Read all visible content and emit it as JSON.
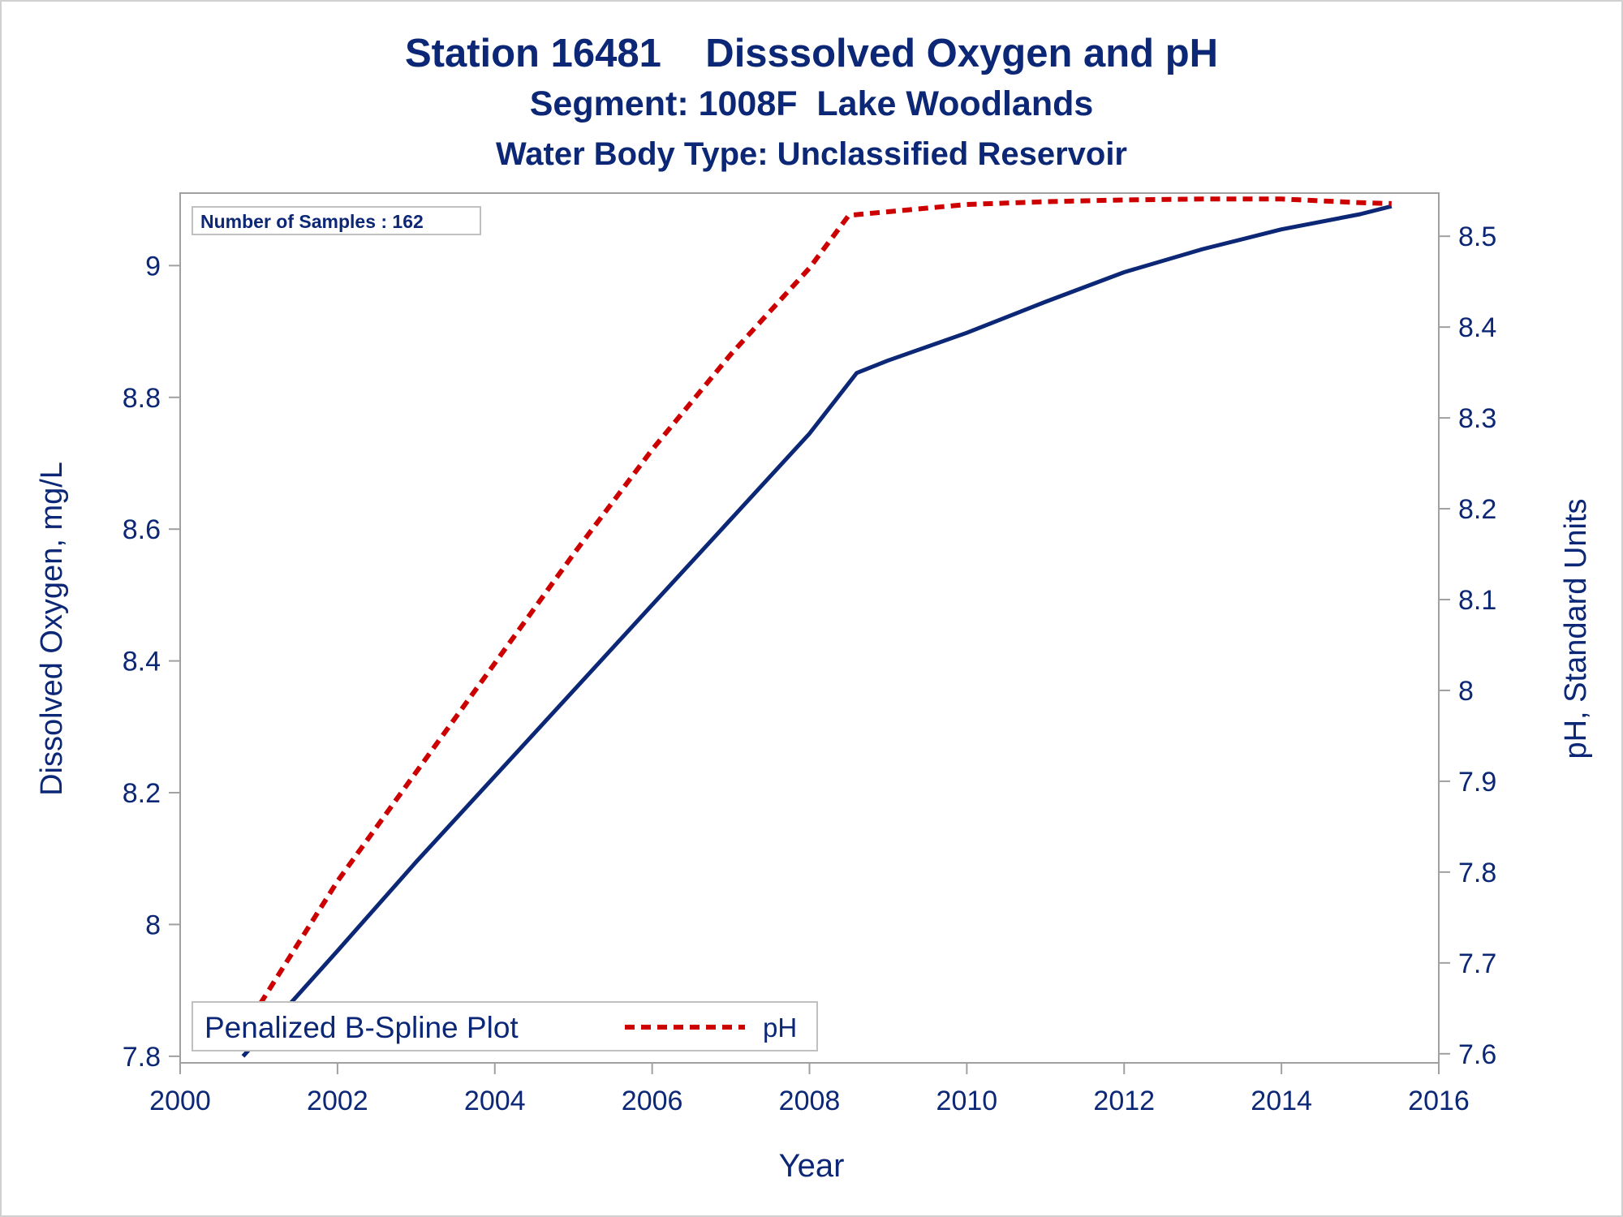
{
  "titles": {
    "line1": "Station 16481    Disssolved Oxygen and pH",
    "line2": "Segment: 1008F  Lake Woodlands",
    "line3": "Water Body Type: Unclassified Reservoir"
  },
  "samples_label": "Number of Samples : 162",
  "colors": {
    "text": "#0b2775",
    "do_line": "#0b2775",
    "ph_line": "#cc0000",
    "axis": "#a0a0a0"
  },
  "chart_data": {
    "type": "line",
    "xlabel": "Year",
    "ylabel": "Dissolved Oxygen, mg/L",
    "y2label": "pH, Standard Units",
    "xlim": [
      2000,
      2016
    ],
    "ylim": [
      7.79,
      9.11
    ],
    "y2lim": [
      7.59,
      8.5475
    ],
    "x_ticks": [
      2000,
      2002,
      2004,
      2006,
      2008,
      2010,
      2012,
      2014,
      2016
    ],
    "y_ticks": [
      7.8,
      8,
      8.2,
      8.4,
      8.6,
      8.8,
      9
    ],
    "y2_ticks": [
      7.6,
      7.7,
      7.8,
      7.9,
      8,
      8.1,
      8.2,
      8.3,
      8.4,
      8.5
    ],
    "legend": {
      "title": "Penalized B-Spline Plot",
      "entries": [
        "pH"
      ],
      "placement": "bottom-left"
    },
    "series": [
      {
        "axis": "left",
        "style": "solid",
        "x": [
          2000.8,
          2002,
          2003,
          2004,
          2005,
          2006,
          2007,
          2008,
          2008.6,
          2009,
          2010,
          2011,
          2012,
          2013,
          2014,
          2015,
          2015.4
        ],
        "values": [
          7.8,
          7.96,
          8.095,
          8.225,
          8.355,
          8.485,
          8.615,
          8.745,
          8.837,
          8.856,
          8.898,
          8.945,
          8.99,
          9.025,
          9.055,
          9.078,
          9.09
        ]
      },
      {
        "name": "pH",
        "axis": "right",
        "style": "dashed",
        "x": [
          2000.8,
          2002,
          2003,
          2004,
          2005,
          2006,
          2007,
          2008,
          2008.5,
          2009,
          2010,
          2011,
          2012,
          2013,
          2014,
          2015,
          2015.4
        ],
        "values": [
          7.625,
          7.79,
          7.91,
          8.03,
          8.15,
          8.265,
          8.37,
          8.465,
          8.523,
          8.527,
          8.535,
          8.538,
          8.54,
          8.541,
          8.541,
          8.537,
          8.536
        ]
      }
    ]
  }
}
